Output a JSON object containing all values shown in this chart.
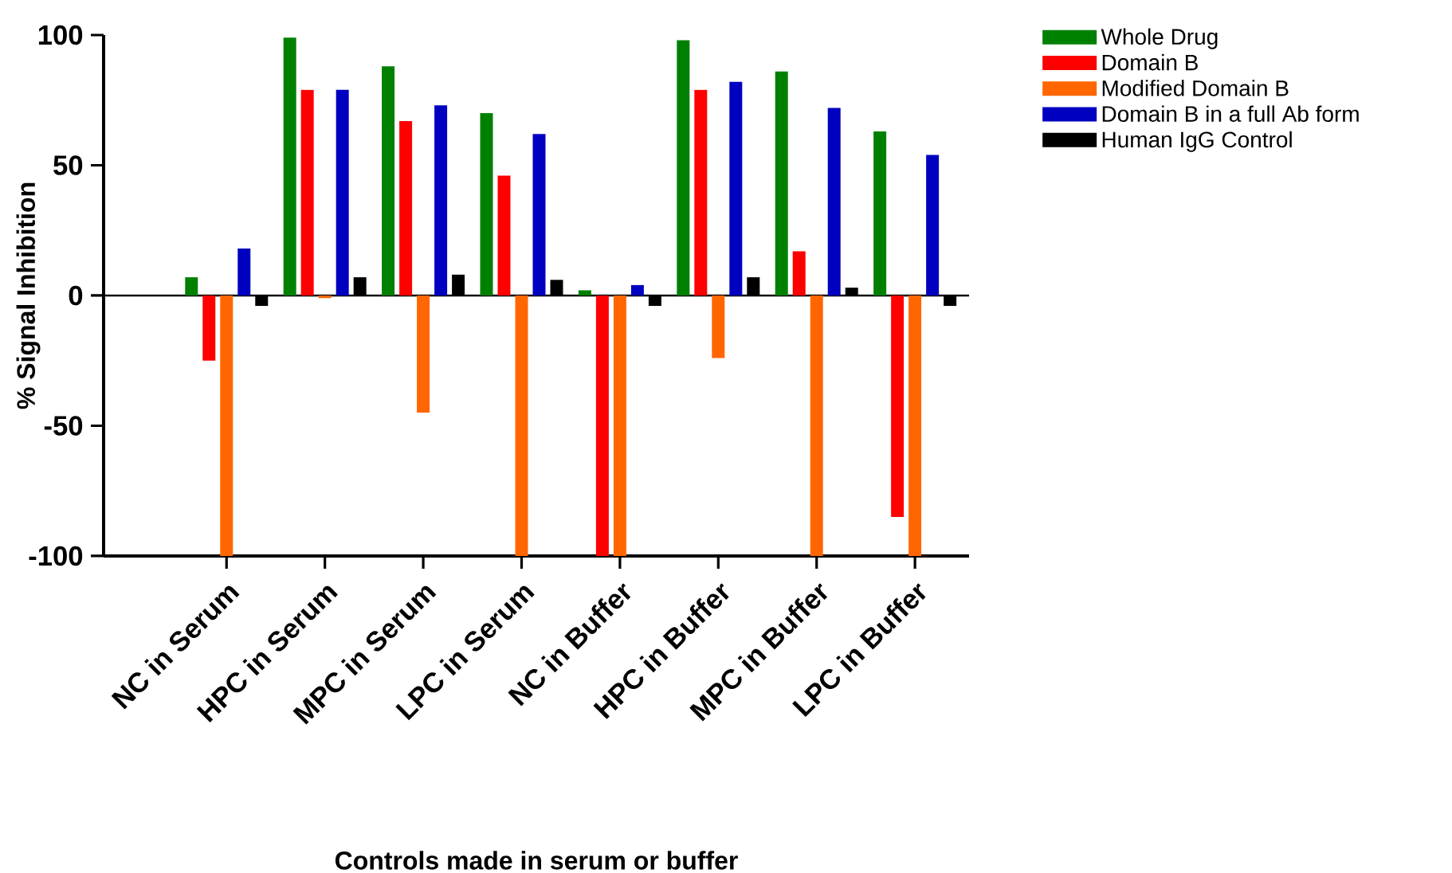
{
  "chart_data": {
    "type": "bar",
    "xlabel": "Controls made in serum or buffer",
    "ylabel": "% Signal Inhibition",
    "categories": [
      "NC in Serum",
      "HPC in Serum",
      "MPC in Serum",
      "LPC in Serum",
      "NC in Buffer",
      "HPC in Buffer",
      "MPC in Buffer",
      "LPC in Buffer"
    ],
    "series": [
      {
        "name": "Whole Drug",
        "color": "#008000",
        "values": [
          7,
          99,
          88,
          70,
          2,
          98,
          86,
          63
        ]
      },
      {
        "name": "Domain B",
        "color": "#ff0000",
        "values": [
          -25,
          79,
          67,
          46,
          -100,
          79,
          17,
          -85
        ]
      },
      {
        "name": "Modified Domain B",
        "color": "#ff6600",
        "values": [
          -100,
          -1,
          -45,
          -100,
          -100,
          -24,
          -100,
          -100
        ]
      },
      {
        "name": "Domain B in a full Ab form",
        "color": "#0000c0",
        "values": [
          18,
          79,
          73,
          62,
          4,
          82,
          72,
          54
        ]
      },
      {
        "name": "Human IgG Control",
        "color": "#000000",
        "values": [
          -4,
          7,
          8,
          6,
          -4,
          7,
          3,
          -4
        ]
      }
    ],
    "ylim": [
      -100,
      100
    ],
    "yticks": [
      -100,
      -50,
      0,
      50,
      100
    ],
    "ref_lines": [
      {
        "axis": "y",
        "value": 0
      }
    ],
    "grid": false,
    "legend": "top right"
  }
}
